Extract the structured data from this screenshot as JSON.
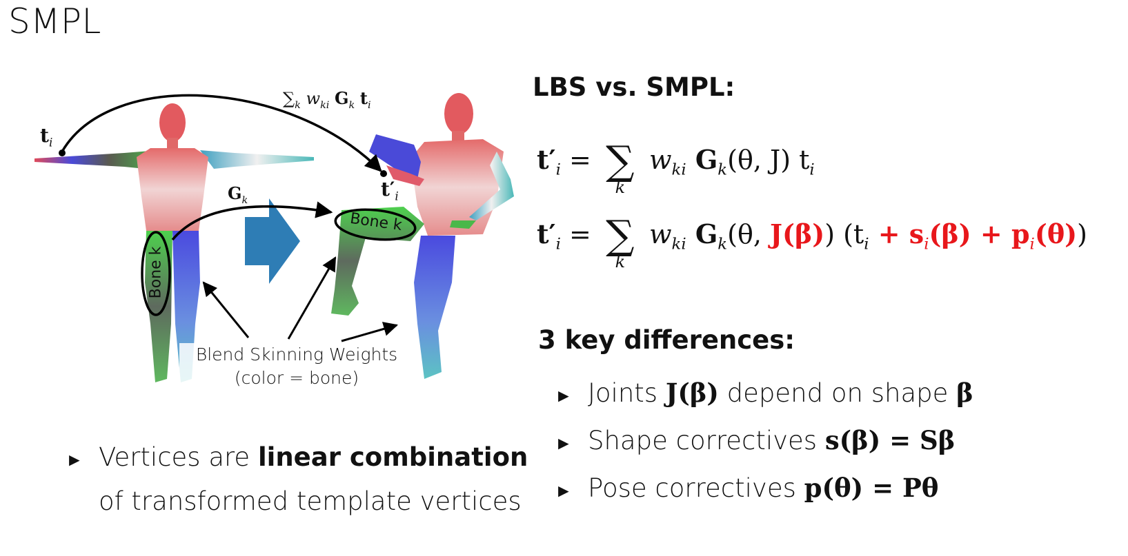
{
  "title": "SMPL",
  "figure": {
    "label_ti": "t",
    "label_ti_sub": "i",
    "label_tpi": "t′",
    "label_tpi_sub": "i",
    "label_sum": "∑",
    "label_sum_rest": "w",
    "label_sum_sub_k": "k",
    "label_sum_sub_ki": "ki",
    "label_sum_G": "G",
    "label_sum_t": "t",
    "label_Gk": "G",
    "label_Gk_sub": "k",
    "bone_label_left": "Bone k",
    "bone_label_right": "Bone k",
    "caption_line1": "Blend Skinning Weights",
    "caption_line2": "(color = bone)"
  },
  "left_bullet": {
    "part1": "Vertices are ",
    "bold": "linear combination",
    "line2": "of transformed template vertices"
  },
  "right": {
    "heading": "LBS vs. SMPL:",
    "eq1": {
      "lhs": "t′",
      "sub": "i",
      "eqsign": " = ",
      "sigma": "∑",
      "k": "k",
      "w": "w",
      "wsub": "ki",
      "G": " G",
      "Gsub": "k",
      "args": "(θ, J) t",
      "tsub": "i"
    },
    "eq2": {
      "lhs": "t′",
      "sub": "i",
      "eqsign": " = ",
      "sigma": "∑",
      "k": "k",
      "w": "w",
      "wsub": "ki",
      "G": " G",
      "Gsub": "k",
      "open": "(θ, ",
      "Jbeta": "J(β)",
      "close": ") (t",
      "tsub": "i",
      "plus1": " + s",
      "ssub": "i",
      "sarg": "(β) + p",
      "psub": "i",
      "parg": "(θ)",
      "end": ")"
    },
    "differences_heading": "3 key differences:",
    "bullets": [
      {
        "text_a": "Joints ",
        "math_a": "J(β)",
        "text_b": " depend on shape ",
        "math_b": "β"
      },
      {
        "text_a": "Shape correctives ",
        "math_a": "s(β) = Sβ"
      },
      {
        "text_a": "Pose correctives ",
        "math_a": "p(θ) = Pθ"
      }
    ],
    "bullet_marker": "►"
  },
  "colors": {
    "accent_red": "#e8171b",
    "arrow_blue": "#2e7db5",
    "bone_green": "#3fbf3f"
  }
}
